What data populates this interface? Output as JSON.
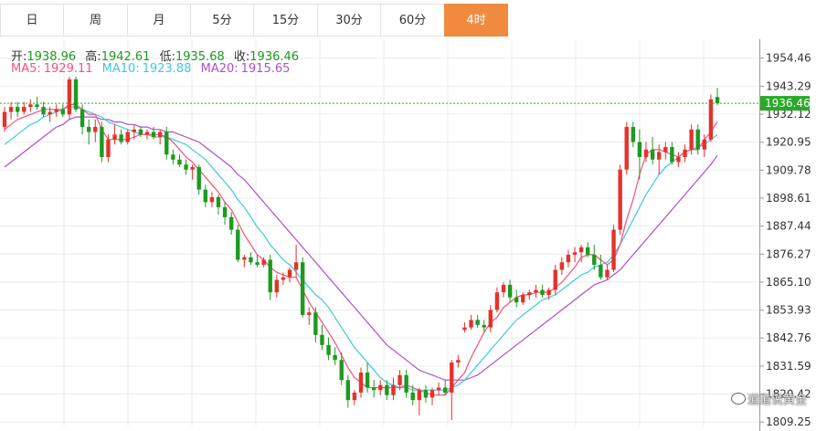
{
  "tabs": [
    {
      "label": "日"
    },
    {
      "label": "周"
    },
    {
      "label": "月"
    },
    {
      "label": "5分"
    },
    {
      "label": "15分"
    },
    {
      "label": "30分"
    },
    {
      "label": "60分"
    },
    {
      "label": "4时"
    }
  ],
  "active_tab": "4时",
  "ohlc": {
    "open_label": "开:",
    "open": "1938.96",
    "high_label": "高:",
    "high": "1942.61",
    "low_label": "低:",
    "low": "1935.68",
    "close_label": "收:",
    "close": "1936.46"
  },
  "ma": {
    "ma5_label": "MA5:",
    "ma5": "1929.11",
    "ma10_label": "MA10:",
    "ma10": "1923.88",
    "ma20_label": "MA20:",
    "ma20": "1915.65"
  },
  "watermark": "道道说黄金",
  "colors": {
    "up": "#e4322b",
    "down": "#1d9a1f",
    "ma5": "#f4527a",
    "ma10": "#3fc8e0",
    "ma20": "#b050c8",
    "active_tab": "#f08a3e",
    "price_line": "#2aa82a"
  },
  "chart_data": {
    "type": "candlestick",
    "interval": "4时",
    "last_price": 1936.46,
    "yticks": [
      1954.46,
      1943.29,
      1932.12,
      1920.95,
      1909.78,
      1898.61,
      1887.44,
      1876.27,
      1865.1,
      1853.93,
      1842.76,
      1831.59,
      1820.42,
      1809.25
    ],
    "ylim": [
      1807.5,
      1962
    ],
    "grid": true,
    "ohlc": [
      [
        1927,
        1935,
        1925,
        1933
      ],
      [
        1933,
        1937,
        1930,
        1935
      ],
      [
        1935,
        1937,
        1931,
        1933
      ],
      [
        1933,
        1937,
        1932,
        1935
      ],
      [
        1935,
        1938,
        1933,
        1936
      ],
      [
        1936,
        1939,
        1934,
        1935
      ],
      [
        1935,
        1937,
        1931,
        1932
      ],
      [
        1932,
        1935,
        1929,
        1933
      ],
      [
        1933,
        1936,
        1931,
        1934
      ],
      [
        1934,
        1936,
        1931,
        1932
      ],
      [
        1932,
        1947,
        1930,
        1946
      ],
      [
        1946,
        1947,
        1933,
        1934
      ],
      [
        1934,
        1936,
        1924,
        1927
      ],
      [
        1927,
        1930,
        1920,
        1925
      ],
      [
        1925,
        1930,
        1921,
        1927
      ],
      [
        1927,
        1929,
        1913,
        1915
      ],
      [
        1915,
        1924,
        1913,
        1922
      ],
      [
        1922,
        1928,
        1920,
        1924
      ],
      [
        1924,
        1926,
        1920,
        1921
      ],
      [
        1921,
        1926,
        1920,
        1925
      ],
      [
        1925,
        1928,
        1922,
        1926
      ],
      [
        1926,
        1927,
        1923,
        1924
      ],
      [
        1924,
        1926,
        1922,
        1925
      ],
      [
        1925,
        1927,
        1922,
        1923
      ],
      [
        1923,
        1926,
        1920,
        1925
      ],
      [
        1925,
        1927,
        1914,
        1916
      ],
      [
        1916,
        1918,
        1912,
        1914
      ],
      [
        1914,
        1916,
        1911,
        1912
      ],
      [
        1912,
        1914,
        1908,
        1910
      ],
      [
        1910,
        1912,
        1906,
        1911
      ],
      [
        1911,
        1912,
        1900,
        1902
      ],
      [
        1902,
        1904,
        1895,
        1897
      ],
      [
        1897,
        1901,
        1895,
        1899
      ],
      [
        1899,
        1900,
        1892,
        1895
      ],
      [
        1895,
        1897,
        1888,
        1891
      ],
      [
        1891,
        1893,
        1884,
        1886
      ],
      [
        1886,
        1888,
        1873,
        1874
      ],
      [
        1874,
        1876,
        1871,
        1875
      ],
      [
        1875,
        1877,
        1872,
        1873
      ],
      [
        1873,
        1876,
        1871,
        1872
      ],
      [
        1872,
        1875,
        1871,
        1874
      ],
      [
        1874,
        1876,
        1858,
        1861
      ],
      [
        1861,
        1868,
        1859,
        1866
      ],
      [
        1866,
        1869,
        1864,
        1867
      ],
      [
        1867,
        1871,
        1865,
        1870
      ],
      [
        1870,
        1880,
        1867,
        1873
      ],
      [
        1873,
        1875,
        1851,
        1852
      ],
      [
        1852,
        1855,
        1848,
        1853
      ],
      [
        1853,
        1855,
        1841,
        1844
      ],
      [
        1844,
        1848,
        1838,
        1840
      ],
      [
        1840,
        1843,
        1834,
        1836
      ],
      [
        1836,
        1839,
        1832,
        1834
      ],
      [
        1834,
        1837,
        1824,
        1826
      ],
      [
        1826,
        1828,
        1815,
        1818
      ],
      [
        1818,
        1822,
        1816,
        1821
      ],
      [
        1821,
        1831,
        1819,
        1829
      ],
      [
        1829,
        1833,
        1821,
        1823
      ],
      [
        1823,
        1826,
        1819,
        1822
      ],
      [
        1822,
        1826,
        1820,
        1824
      ],
      [
        1824,
        1826,
        1818,
        1820
      ],
      [
        1820,
        1827,
        1818,
        1824
      ],
      [
        1824,
        1830,
        1822,
        1828
      ],
      [
        1828,
        1830,
        1819,
        1821
      ],
      [
        1821,
        1824,
        1816,
        1818
      ],
      [
        1818,
        1823,
        1812,
        1822
      ],
      [
        1822,
        1824,
        1817,
        1819
      ],
      [
        1819,
        1823,
        1816,
        1822
      ],
      [
        1822,
        1825,
        1820,
        1823
      ],
      [
        1823,
        1826,
        1820,
        1821
      ],
      [
        1821,
        1834,
        1810,
        1833
      ],
      [
        1833,
        1836,
        1831,
        1834
      ],
      [
        1846,
        1849,
        1845,
        1847
      ],
      [
        1847,
        1852,
        1846,
        1850
      ],
      [
        1850,
        1852,
        1847,
        1848
      ],
      [
        1848,
        1850,
        1845,
        1847
      ],
      [
        1847,
        1856,
        1845,
        1854
      ],
      [
        1854,
        1863,
        1853,
        1861
      ],
      [
        1861,
        1865,
        1859,
        1864
      ],
      [
        1864,
        1866,
        1857,
        1859
      ],
      [
        1859,
        1862,
        1855,
        1857
      ],
      [
        1857,
        1861,
        1856,
        1860
      ],
      [
        1860,
        1862,
        1858,
        1861
      ],
      [
        1861,
        1864,
        1859,
        1862
      ],
      [
        1862,
        1864,
        1859,
        1860
      ],
      [
        1860,
        1863,
        1858,
        1862
      ],
      [
        1862,
        1872,
        1860,
        1870
      ],
      [
        1870,
        1875,
        1868,
        1873
      ],
      [
        1873,
        1878,
        1871,
        1876
      ],
      [
        1876,
        1879,
        1873,
        1877
      ],
      [
        1877,
        1880,
        1873,
        1879
      ],
      [
        1879,
        1881,
        1875,
        1876
      ],
      [
        1876,
        1880,
        1870,
        1872
      ],
      [
        1872,
        1876,
        1866,
        1867
      ],
      [
        1867,
        1872,
        1866,
        1870
      ],
      [
        1870,
        1888,
        1869,
        1886
      ],
      [
        1886,
        1912,
        1884,
        1910
      ],
      [
        1910,
        1929,
        1908,
        1927
      ],
      [
        1927,
        1929,
        1919,
        1921
      ],
      [
        1921,
        1926,
        1906,
        1915
      ],
      [
        1915,
        1921,
        1913,
        1918
      ],
      [
        1918,
        1923,
        1912,
        1914
      ],
      [
        1914,
        1920,
        1908,
        1917
      ],
      [
        1917,
        1921,
        1914,
        1919
      ],
      [
        1919,
        1921,
        1912,
        1913
      ],
      [
        1913,
        1917,
        1911,
        1915
      ],
      [
        1915,
        1920,
        1913,
        1918
      ],
      [
        1918,
        1928,
        1916,
        1926
      ],
      [
        1926,
        1928,
        1916,
        1918
      ],
      [
        1918,
        1924,
        1915,
        1922
      ],
      [
        1922,
        1940,
        1921,
        1938
      ],
      [
        1938.96,
        1942.61,
        1935.68,
        1936.46
      ]
    ],
    "ma5": [
      1926,
      1928,
      1930,
      1931,
      1932,
      1933,
      1934,
      1934,
      1934,
      1934,
      1936,
      1936,
      1934,
      1932,
      1932,
      1926,
      1922,
      1922,
      1922,
      1922,
      1923,
      1924,
      1924,
      1924,
      1924,
      1923,
      1921,
      1918,
      1915,
      1913,
      1910,
      1907,
      1904,
      1901,
      1897,
      1894,
      1889,
      1884,
      1880,
      1876,
      1874,
      1871,
      1869,
      1868,
      1867,
      1867,
      1862,
      1857,
      1853,
      1849,
      1845,
      1841,
      1836,
      1831,
      1827,
      1825,
      1823,
      1823,
      1823,
      1823,
      1823,
      1823,
      1824,
      1823,
      1822,
      1821,
      1820,
      1820,
      1820,
      1823,
      1826,
      1829,
      1835,
      1840,
      1845,
      1849,
      1851,
      1855,
      1857,
      1859,
      1860,
      1860,
      1861,
      1861,
      1861,
      1863,
      1865,
      1868,
      1871,
      1875,
      1876,
      1876,
      1874,
      1872,
      1874,
      1880,
      1890,
      1898,
      1908,
      1916,
      1918,
      1918,
      1917,
      1916,
      1915,
      1917,
      1918,
      1918,
      1922,
      1925,
      1929.11
    ],
    "ma10": [
      1920,
      1922,
      1924,
      1926,
      1928,
      1929,
      1931,
      1932,
      1933,
      1934,
      1935,
      1935,
      1934,
      1933,
      1932,
      1931,
      1929,
      1928,
      1927,
      1926,
      1925,
      1924,
      1924,
      1923,
      1923,
      1923,
      1922,
      1921,
      1920,
      1918,
      1916,
      1914,
      1911,
      1908,
      1905,
      1902,
      1898,
      1895,
      1891,
      1887,
      1884,
      1880,
      1877,
      1874,
      1872,
      1869,
      1866,
      1863,
      1860,
      1858,
      1855,
      1851,
      1847,
      1843,
      1839,
      1836,
      1833,
      1830,
      1827,
      1825,
      1824,
      1823,
      1823,
      1822,
      1822,
      1822,
      1822,
      1822,
      1822,
      1823,
      1824,
      1826,
      1829,
      1832,
      1835,
      1838,
      1841,
      1844,
      1847,
      1850,
      1852,
      1854,
      1856,
      1858,
      1859,
      1860,
      1862,
      1864,
      1866,
      1868,
      1869,
      1871,
      1872,
      1873,
      1876,
      1880,
      1885,
      1890,
      1895,
      1900,
      1904,
      1908,
      1911,
      1913,
      1915,
      1917,
      1918,
      1919,
      1920,
      1922,
      1923.88
    ],
    "ma20": [
      1911,
      1913,
      1915,
      1917,
      1919,
      1921,
      1923,
      1925,
      1927,
      1928,
      1930,
      1931,
      1931,
      1931,
      1931,
      1930,
      1930,
      1929,
      1929,
      1928,
      1928,
      1927,
      1927,
      1926,
      1926,
      1925,
      1925,
      1924,
      1923,
      1922,
      1921,
      1919,
      1917,
      1915,
      1913,
      1911,
      1908,
      1906,
      1903,
      1900,
      1897,
      1894,
      1891,
      1888,
      1885,
      1882,
      1879,
      1876,
      1873,
      1870,
      1867,
      1864,
      1861,
      1858,
      1855,
      1852,
      1849,
      1846,
      1843,
      1840,
      1838,
      1836,
      1834,
      1832,
      1830,
      1829,
      1828,
      1827,
      1826,
      1826,
      1826,
      1826,
      1827,
      1828,
      1830,
      1832,
      1834,
      1836,
      1838,
      1840,
      1842,
      1844,
      1846,
      1848,
      1850,
      1852,
      1854,
      1856,
      1858,
      1860,
      1862,
      1864,
      1865,
      1866,
      1868,
      1870,
      1873,
      1876,
      1879,
      1882,
      1885,
      1888,
      1891,
      1894,
      1897,
      1900,
      1903,
      1906,
      1909,
      1912,
      1915.65
    ]
  }
}
